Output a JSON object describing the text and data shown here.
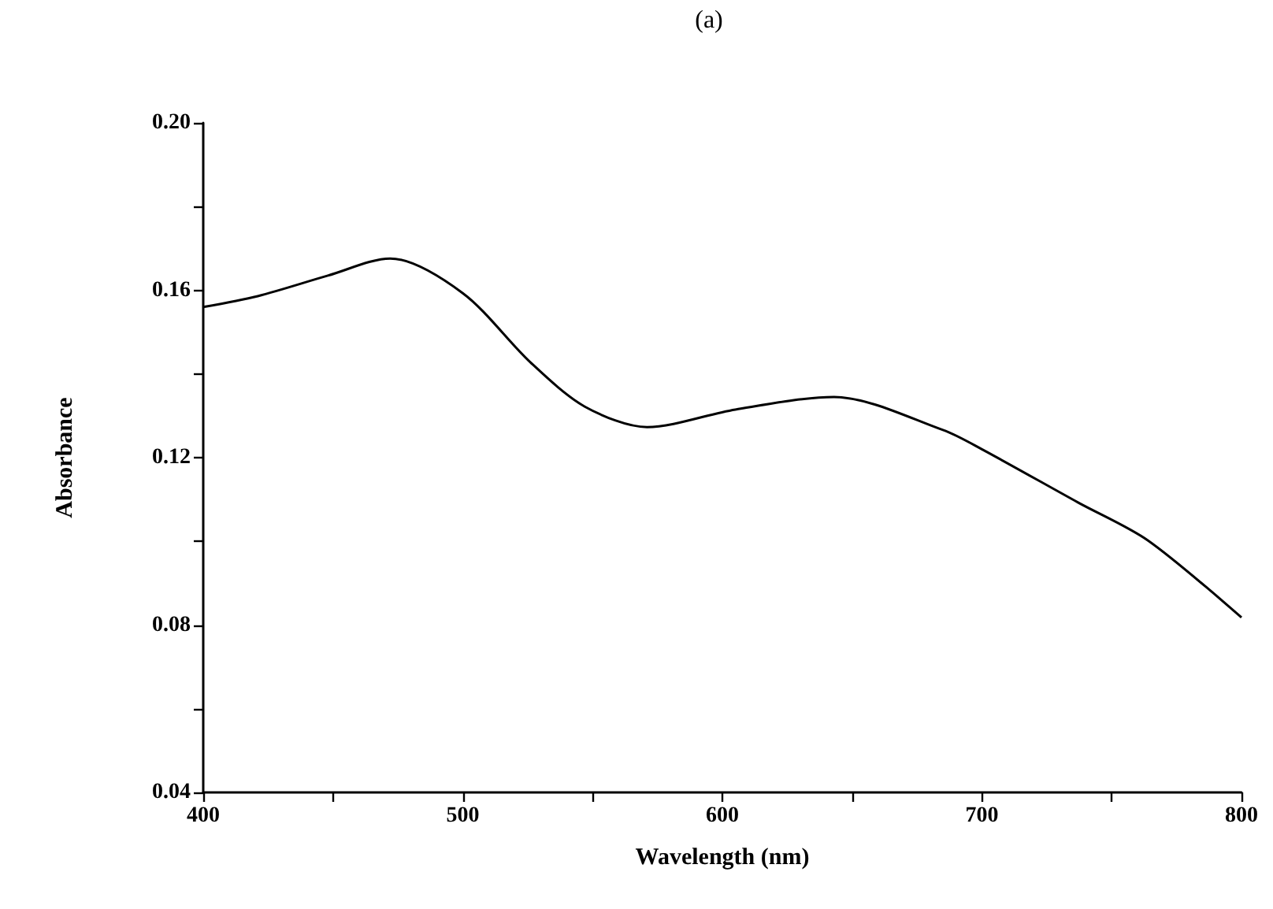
{
  "chart_data": {
    "type": "line",
    "title": "(a)",
    "xlabel": "Wavelength (nm)",
    "ylabel": "Absorbance",
    "x": [
      400,
      421,
      448,
      472,
      500,
      526,
      547,
      571,
      605,
      643,
      685,
      700,
      737,
      764,
      800
    ],
    "series": [
      {
        "color": "#000000",
        "values": [
          0.156,
          0.1586,
          0.1635,
          0.1676,
          0.1593,
          0.1428,
          0.1322,
          0.1273,
          0.1315,
          0.1345,
          0.1266,
          0.122,
          0.1093,
          0.1002,
          0.0818
        ]
      }
    ],
    "xlim": [
      400,
      800
    ],
    "xticks": [
      400,
      {
        "value": 450,
        "label": null
      },
      500,
      {
        "value": 550,
        "label": null
      },
      600,
      {
        "value": 650,
        "label": null
      },
      700,
      {
        "value": 750,
        "label": null
      },
      800
    ],
    "ylim": [
      0.04,
      0.2
    ],
    "yticks": [
      {
        "value": 0.04,
        "label": "0.04"
      },
      {
        "value": 0.06,
        "label": null
      },
      {
        "value": 0.08,
        "label": "0.08"
      },
      {
        "value": 0.1,
        "label": null
      },
      {
        "value": 0.12,
        "label": "0.12"
      },
      {
        "value": 0.14,
        "label": null
      },
      {
        "value": 0.16,
        "label": "0.16"
      },
      {
        "value": 0.18,
        "label": null
      },
      {
        "value": 0.2,
        "label": "0.20"
      }
    ],
    "grid": false,
    "marker": "none",
    "line_style": "solid"
  }
}
